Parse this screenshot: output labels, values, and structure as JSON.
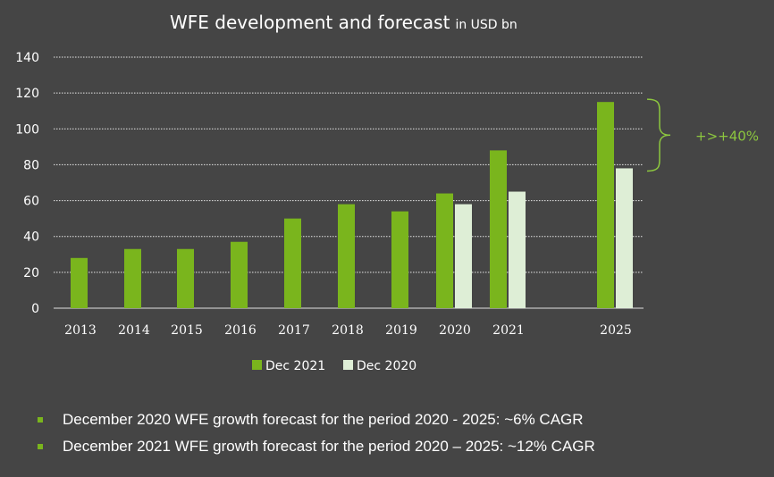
{
  "chart_data": {
    "type": "bar",
    "title": "WFE development and forecast",
    "title_unit": "in USD bn",
    "categories": [
      "2013",
      "2014",
      "2015",
      "2016",
      "2017",
      "2018",
      "2019",
      "2020",
      "2021",
      "2025"
    ],
    "series": [
      {
        "name": "Dec 2021",
        "color": "#7ab51d",
        "values": [
          28,
          33,
          33,
          37,
          50,
          58,
          54,
          64,
          88,
          115
        ]
      },
      {
        "name": "Dec 2020",
        "color": "#deeed6",
        "values": [
          null,
          null,
          null,
          null,
          null,
          null,
          null,
          58,
          65,
          78
        ]
      }
    ],
    "ylim": [
      0,
      140
    ],
    "yticks": [
      "0",
      "20",
      "40",
      "60",
      "80",
      "100",
      "120",
      "140"
    ],
    "grid": true,
    "legend_position": "bottom-center",
    "annotation": {
      "text": "+>+40%",
      "color": "#8cc63f",
      "from_value": 78,
      "to_value": 115
    }
  },
  "notes": [
    "December 2020 WFE  growth forecast for the period 2020 - 2025: ~6% CAGR",
    "December 2021 WFE growth forecast for the period 2020 – 2025: ~12% CAGR"
  ]
}
